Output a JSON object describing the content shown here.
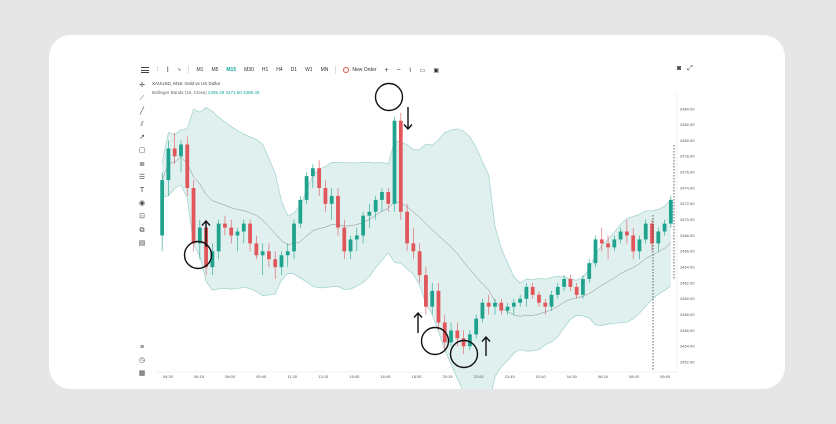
{
  "toolbar": {
    "timeframes": [
      {
        "label": "M1",
        "active": false
      },
      {
        "label": "M5",
        "active": false
      },
      {
        "label": "M15",
        "active": true
      },
      {
        "label": "M30",
        "active": false
      },
      {
        "label": "H1",
        "active": false
      },
      {
        "label": "H4",
        "active": false
      },
      {
        "label": "D1",
        "active": false
      },
      {
        "label": "W1",
        "active": false
      },
      {
        "label": "MN",
        "active": false
      }
    ],
    "new_order_label": "New Order",
    "plus_label": "+",
    "minus_label": "−"
  },
  "symbol_line": "XAUUSD, M15: Gold vs US Dollar",
  "indicator_line": {
    "name": "Bollinger Bands (16, Close)",
    "values": "2465.49 2471.50 2468.49"
  },
  "left_tools": [
    "crosshair-icon",
    "ruler-icon",
    "trend-line-icon",
    "parallel-channel-icon",
    "ray-icon",
    "rectangle-icon",
    "fibonacci-icon",
    "levels-icon",
    "text-icon",
    "eye-icon",
    "lock-icon",
    "stack-icon",
    "table-icon"
  ],
  "left_bottom_tools": [
    "list-icon",
    "history-icon",
    "calendar-icon"
  ],
  "chart_data": {
    "type": "candlestick",
    "y_ticks": [
      "2484.00",
      "2482.00",
      "2480.00",
      "2478.00",
      "2476.00",
      "2474.00",
      "2472.00",
      "2470.00",
      "2468.00",
      "2466.00",
      "2464.00",
      "2462.00",
      "2460.00",
      "2458.00",
      "2456.00",
      "2454.00",
      "2452.00"
    ],
    "x_ticks": [
      "04:30",
      "06:15",
      "08:00",
      "09:45",
      "11:30",
      "13:15",
      "15:00",
      "16:45",
      "18:30",
      "20:15",
      "22:00",
      "23:45",
      "02:40",
      "04:30",
      "06:15",
      "08:00",
      "09:45"
    ],
    "ylim": [
      2451,
      2485.5
    ],
    "colors": {
      "up": "#1fa38f",
      "down": "#e0565b",
      "band_fill": "#dff0ef",
      "band_line": "#9fd1cc",
      "mid_line": "#8a8a8a"
    },
    "candles": [
      [
        2468,
        2476,
        2466,
        2475
      ],
      [
        2475,
        2480,
        2473,
        2479
      ],
      [
        2479,
        2481,
        2477,
        2478
      ],
      [
        2478,
        2480,
        2476,
        2479.5
      ],
      [
        2479.5,
        2480.5,
        2473,
        2474
      ],
      [
        2474,
        2475,
        2466,
        2467
      ],
      [
        2467,
        2470,
        2465,
        2469
      ],
      [
        2469,
        2470,
        2463,
        2464
      ],
      [
        2464,
        2467,
        2463,
        2466
      ],
      [
        2466,
        2470,
        2465,
        2469.5
      ],
      [
        2469.5,
        2470.5,
        2468,
        2469
      ],
      [
        2469,
        2470,
        2467,
        2468
      ],
      [
        2468,
        2469,
        2466,
        2468.5
      ],
      [
        2468.5,
        2470,
        2467,
        2469.5
      ],
      [
        2469.5,
        2470,
        2466,
        2467
      ],
      [
        2467,
        2468,
        2465,
        2465.5
      ],
      [
        2465.5,
        2467,
        2463,
        2466
      ],
      [
        2466,
        2467,
        2464,
        2465
      ],
      [
        2465,
        2466,
        2462.5,
        2464
      ],
      [
        2464,
        2466,
        2463,
        2465.5
      ],
      [
        2465.5,
        2467,
        2464,
        2466
      ],
      [
        2466,
        2470,
        2465,
        2469.5
      ],
      [
        2469.5,
        2473,
        2469,
        2472.5
      ],
      [
        2472.5,
        2476,
        2472,
        2475.5
      ],
      [
        2475.5,
        2477,
        2474,
        2476.5
      ],
      [
        2476.5,
        2477.5,
        2473,
        2474
      ],
      [
        2474,
        2475,
        2471,
        2472
      ],
      [
        2472,
        2474,
        2470,
        2473
      ],
      [
        2473,
        2474,
        2468,
        2469
      ],
      [
        2469,
        2470,
        2465,
        2466
      ],
      [
        2466,
        2468,
        2465,
        2467.5
      ],
      [
        2467.5,
        2469,
        2466,
        2468
      ],
      [
        2468,
        2471,
        2467,
        2470.5
      ],
      [
        2470.5,
        2472,
        2469,
        2471
      ],
      [
        2471,
        2473,
        2470,
        2472.5
      ],
      [
        2472.5,
        2474,
        2471,
        2473.5
      ],
      [
        2473.5,
        2474,
        2471,
        2472
      ],
      [
        2472,
        2483,
        2471,
        2482.5
      ],
      [
        2482.5,
        2483.5,
        2470,
        2471
      ],
      [
        2471,
        2472,
        2466,
        2467
      ],
      [
        2467,
        2469,
        2465,
        2466
      ],
      [
        2466,
        2467,
        2462,
        2463
      ],
      [
        2463,
        2464,
        2458,
        2459
      ],
      [
        2459,
        2462,
        2458,
        2461
      ],
      [
        2461,
        2462,
        2456,
        2457
      ],
      [
        2457,
        2458,
        2453.5,
        2454.5
      ],
      [
        2454.5,
        2457,
        2454,
        2456
      ],
      [
        2456,
        2457,
        2454,
        2455
      ],
      [
        2455,
        2456,
        2453,
        2454
      ],
      [
        2454,
        2456,
        2453.5,
        2455.5
      ],
      [
        2455.5,
        2458,
        2455,
        2457.5
      ],
      [
        2457.5,
        2460,
        2457,
        2459.5
      ],
      [
        2459.5,
        2460.5,
        2458,
        2459
      ],
      [
        2459,
        2460,
        2458,
        2459.5
      ],
      [
        2459.5,
        2460,
        2458,
        2458.5
      ],
      [
        2458.5,
        2459.5,
        2458,
        2459
      ],
      [
        2459,
        2460,
        2458,
        2459.5
      ],
      [
        2459.5,
        2460.5,
        2459,
        2460
      ],
      [
        2460,
        2462,
        2459,
        2461.5
      ],
      [
        2461.5,
        2462,
        2460,
        2460.5
      ],
      [
        2460.5,
        2461,
        2459,
        2459.5
      ],
      [
        2459.5,
        2460,
        2458,
        2459
      ],
      [
        2459,
        2461,
        2458.5,
        2460.5
      ],
      [
        2460.5,
        2462,
        2460,
        2461.5
      ],
      [
        2461.5,
        2463,
        2461,
        2462.5
      ],
      [
        2462.5,
        2463,
        2461,
        2461.5
      ],
      [
        2461.5,
        2462,
        2460,
        2460.5
      ],
      [
        2460.5,
        2463,
        2460,
        2462.5
      ],
      [
        2462.5,
        2465,
        2462,
        2464.5
      ],
      [
        2464.5,
        2468,
        2464,
        2467.5
      ],
      [
        2467.5,
        2469,
        2466,
        2467
      ],
      [
        2467,
        2468,
        2465,
        2466.5
      ],
      [
        2466.5,
        2468,
        2466,
        2467.5
      ],
      [
        2467.5,
        2469,
        2467,
        2468.5
      ],
      [
        2468.5,
        2470,
        2467,
        2468
      ],
      [
        2468,
        2469,
        2465,
        2466
      ],
      [
        2466,
        2468,
        2465,
        2467.5
      ],
      [
        2467.5,
        2470,
        2467,
        2469.5
      ],
      [
        2469.5,
        2470,
        2466,
        2467
      ],
      [
        2467,
        2469,
        2466,
        2468.5
      ],
      [
        2468.5,
        2470,
        2468,
        2469.5
      ],
      [
        2469.5,
        2473,
        2469,
        2472.5
      ]
    ]
  }
}
